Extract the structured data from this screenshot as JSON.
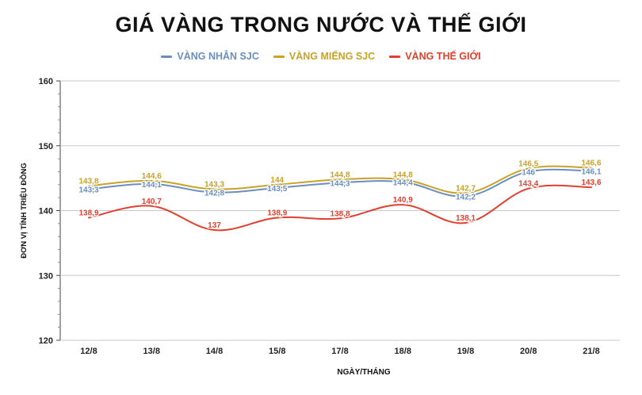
{
  "colors": {
    "nhan": "#6a8fbf",
    "mieng": "#c9a227",
    "thegioi": "#e0412f"
  },
  "chart_data": {
    "type": "line",
    "title": "GIÁ VÀNG TRONG NƯỚC VÀ THẾ GIỚI",
    "xlabel": "NGÀY/THÁNG",
    "ylabel": "ĐƠN VỊ TÍNH TRIỆU ĐỒNG",
    "ylim": [
      120,
      160
    ],
    "yticks": [
      120,
      130,
      140,
      150,
      160
    ],
    "grid": true,
    "legend_position": "top",
    "categories": [
      "12/8",
      "13/8",
      "14/8",
      "15/8",
      "17/8",
      "18/8",
      "19/8",
      "20/8",
      "21/8"
    ],
    "series": [
      {
        "name": "VÀNG NHẪN SJC",
        "values": [
          143.3,
          144.1,
          142.8,
          143.5,
          144.3,
          144.4,
          142.2,
          146.0,
          146.1
        ],
        "labels": [
          "143,3",
          "144,1",
          "142,8",
          "143,5",
          "144,3",
          "144,4",
          "142,2",
          "146",
          "146,1"
        ]
      },
      {
        "name": "VÀNG MIẾNG SJC",
        "values": [
          143.8,
          144.6,
          143.3,
          144.0,
          144.8,
          144.8,
          142.7,
          146.5,
          146.6
        ],
        "labels": [
          "143,8",
          "144,6",
          "143,3",
          "144",
          "144,8",
          "144,8",
          "142,7",
          "146,5",
          "146,6"
        ]
      },
      {
        "name": "VÀNG THẾ GIỚI",
        "values": [
          138.9,
          140.7,
          137.0,
          138.9,
          138.8,
          140.9,
          138.1,
          143.4,
          143.6
        ],
        "labels": [
          "138,9",
          "140,7",
          "137",
          "138,9",
          "138,8",
          "140,9",
          "138,1",
          "143,4",
          "143,6"
        ]
      }
    ]
  }
}
